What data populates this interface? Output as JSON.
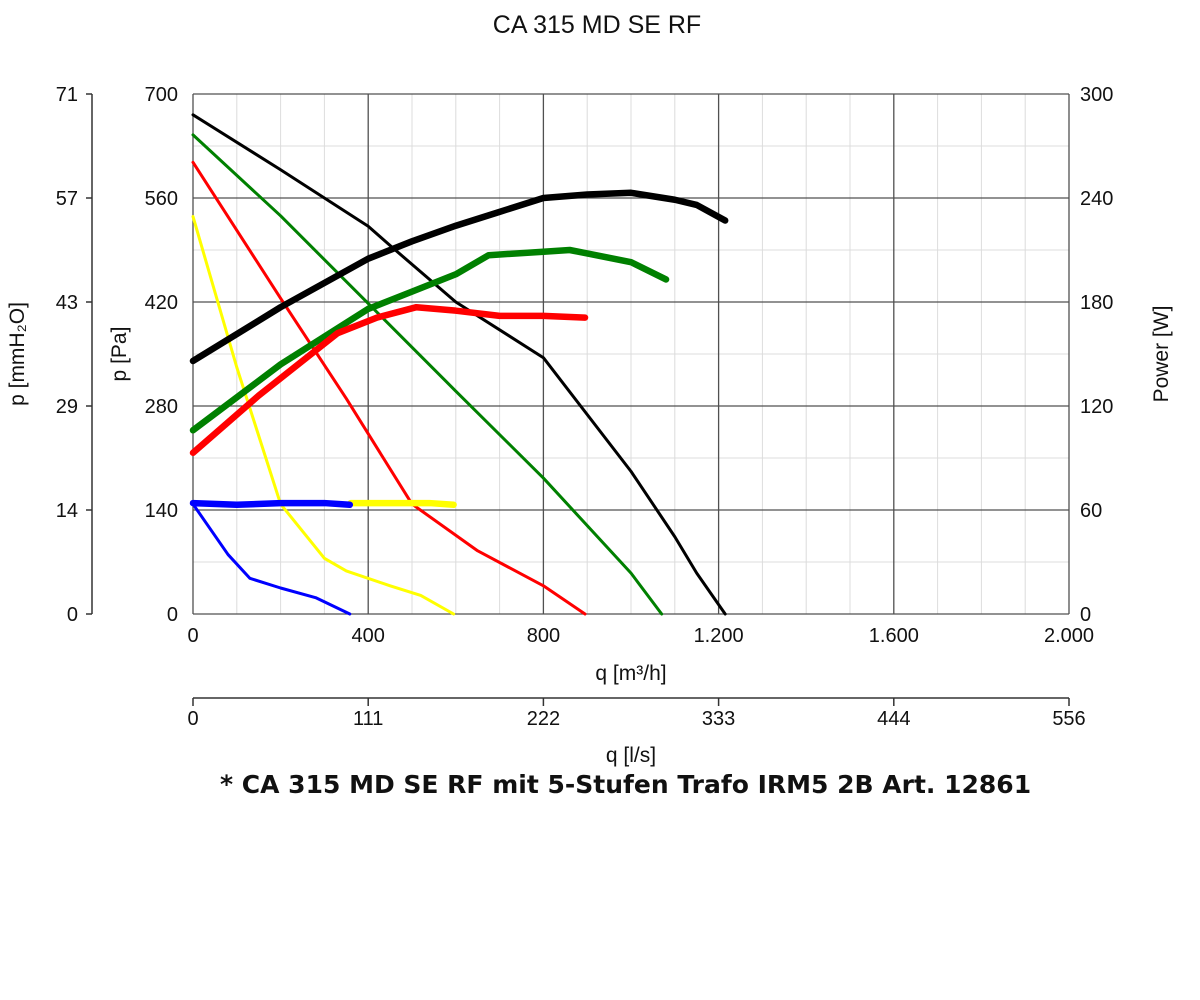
{
  "chart_data": {
    "type": "line",
    "title": "CA 315 MD SE RF",
    "footnote": "* CA 315 MD SE RF mit 5-Stufen Trafo IRM5 2B Art. 12861",
    "x_axis": {
      "label": "q [m³/h]",
      "range": [
        0,
        2000
      ],
      "ticks": [
        0,
        400,
        800,
        1200,
        1600,
        2000
      ],
      "tick_labels": [
        "0",
        "400",
        "800",
        "1.200",
        "1.600",
        "2.000"
      ],
      "minor_step": 100
    },
    "x2_axis": {
      "label": "q [l/s]",
      "ticks_m3h": [
        0,
        400,
        800,
        1200,
        1600,
        2000
      ],
      "tick_labels": [
        "0",
        "111",
        "222",
        "333",
        "444",
        "556"
      ]
    },
    "y_axis": {
      "label": "p [Pa]",
      "range": [
        0,
        700
      ],
      "ticks": [
        0,
        140,
        280,
        420,
        560,
        700
      ],
      "tick_labels": [
        "0",
        "140",
        "280",
        "420",
        "560",
        "700"
      ],
      "minor_step": 70
    },
    "y2_axis": {
      "label": "p [mmH₂O]",
      "tick_labels": [
        "0",
        "14",
        "29",
        "43",
        "57",
        "71"
      ]
    },
    "y3_axis": {
      "label": "Power [W]",
      "range": [
        0,
        300
      ],
      "ticks": [
        0,
        60,
        120,
        180,
        240,
        300
      ],
      "tick_labels": [
        "0",
        "60",
        "120",
        "180",
        "240",
        "300"
      ]
    },
    "grid": true,
    "series": [
      {
        "name": "pressure-black",
        "kind": "pressure",
        "color": "#000000",
        "x": [
          0,
          200,
          400,
          450,
          600,
          800,
          1000,
          1100,
          1150,
          1215
        ],
        "y": [
          672,
          598,
          522,
          496,
          420,
          345,
          192,
          104,
          55,
          0
        ]
      },
      {
        "name": "pressure-green",
        "kind": "pressure",
        "color": "#008000",
        "x": [
          0,
          200,
          400,
          600,
          800,
          1000,
          1070
        ],
        "y": [
          645,
          536,
          418,
          300,
          183,
          55,
          0
        ]
      },
      {
        "name": "pressure-red",
        "kind": "pressure",
        "color": "#ff0000",
        "x": [
          0,
          200,
          350,
          500,
          650,
          800,
          895
        ],
        "y": [
          608,
          425,
          290,
          148,
          85,
          38,
          0
        ]
      },
      {
        "name": "pressure-yellow",
        "kind": "pressure",
        "color": "#ffff00",
        "x": [
          0,
          100,
          200,
          300,
          350,
          450,
          520,
          595
        ],
        "y": [
          535,
          332,
          148,
          75,
          58,
          38,
          25,
          0
        ]
      },
      {
        "name": "pressure-blue",
        "kind": "pressure",
        "color": "#0000ff",
        "x": [
          0,
          80,
          130,
          200,
          280,
          358
        ],
        "y": [
          148,
          80,
          48,
          35,
          22,
          0
        ]
      },
      {
        "name": "power-black",
        "kind": "power",
        "color": "#000000",
        "x": [
          0,
          200,
          400,
          500,
          600,
          700,
          800,
          900,
          1000,
          1100,
          1150,
          1215
        ],
        "y": [
          146,
          177,
          205,
          215,
          224,
          232,
          240,
          242,
          243,
          239,
          236,
          227
        ]
      },
      {
        "name": "power-green",
        "kind": "power",
        "color": "#008000",
        "x": [
          0,
          200,
          400,
          500,
          600,
          675,
          800,
          860,
          900,
          1000,
          1080
        ],
        "y": [
          106,
          144,
          176,
          186,
          196,
          207,
          209,
          210,
          208,
          203,
          193
        ]
      },
      {
        "name": "power-red",
        "kind": "power",
        "color": "#ff0000",
        "x": [
          0,
          150,
          330,
          420,
          510,
          600,
          700,
          800,
          895
        ],
        "y": [
          93,
          126,
          162,
          171,
          177,
          175,
          172,
          172,
          171
        ]
      },
      {
        "name": "power-yellow",
        "kind": "power",
        "color": "#ffff00",
        "x": [
          360,
          450,
          540,
          595
        ],
        "y": [
          64,
          64,
          64,
          63
        ]
      },
      {
        "name": "power-blue",
        "kind": "power",
        "color": "#0000ff",
        "x": [
          0,
          100,
          200,
          300,
          358
        ],
        "y": [
          64,
          63,
          64,
          64,
          63
        ]
      }
    ]
  }
}
